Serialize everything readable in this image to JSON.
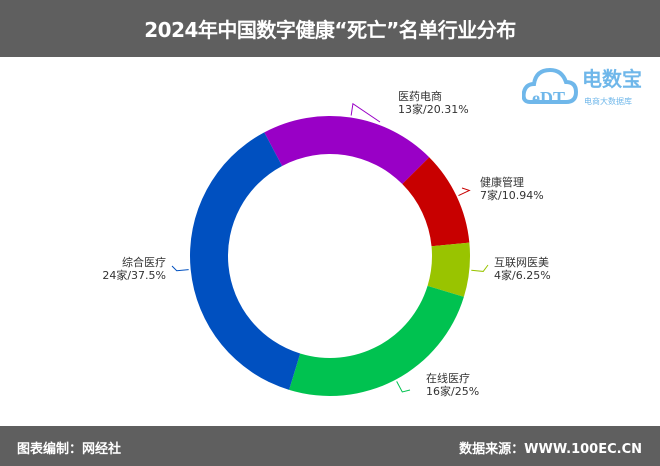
{
  "header": {
    "title": "2024年中国数字健康“死亡”名单行业分布"
  },
  "footer": {
    "left": "图表编制：网经社",
    "right": "数据来源：WWW.100EC.CN"
  },
  "logo": {
    "text": "电数宝",
    "subtext": "电商大数据库",
    "mark": "eDT"
  },
  "chart_data": {
    "type": "pie",
    "variant": "donut",
    "title": "2024年中国数字健康“死亡”名单行业分布",
    "direction": "clockwise",
    "slices": [
      {
        "name": "医药电商",
        "value": 13,
        "percent": 20.31,
        "label": "13家/20.31%",
        "color": "#9900c6"
      },
      {
        "name": "健康管理",
        "value": 7,
        "percent": 10.94,
        "label": "7家/10.94%",
        "color": "#c80000"
      },
      {
        "name": "互联网医美",
        "value": 4,
        "percent": 6.25,
        "label": "4家/6.25%",
        "color": "#99c400"
      },
      {
        "name": "在线医疗",
        "value": 16,
        "percent": 25,
        "label": "16家/25%",
        "color": "#00c250"
      },
      {
        "name": "综合医疗",
        "value": 24,
        "percent": 37.5,
        "label": "24家/37.5%",
        "color": "#0050c0"
      }
    ]
  }
}
